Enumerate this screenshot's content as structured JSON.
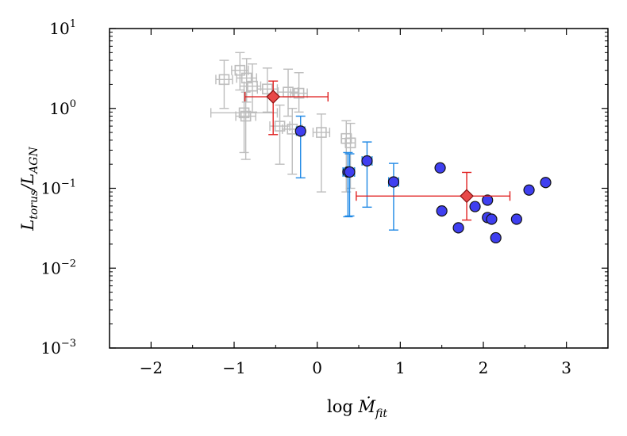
{
  "chart_data": {
    "type": "scatter",
    "title": "",
    "xlabel": {
      "prefix": "log ",
      "symbol": "Ṁ",
      "subscript": "fit"
    },
    "ylabel": {
      "symbol_num": "L",
      "sub_num": "torus",
      "slash": "/",
      "symbol_den": "L",
      "sub_den": "AGN"
    },
    "xlim": [
      -2.5,
      3.5
    ],
    "ylim_log10": [
      -3,
      1
    ],
    "yscale": "log",
    "x_ticks": [
      {
        "value": -2,
        "label": "−2"
      },
      {
        "value": -1,
        "label": "−1"
      },
      {
        "value": 0,
        "label": "0"
      },
      {
        "value": 1,
        "label": "1"
      },
      {
        "value": 2,
        "label": "2"
      },
      {
        "value": 3,
        "label": "3"
      }
    ],
    "y_ticks": [
      {
        "exp": 1,
        "base": "10",
        "sup": "1"
      },
      {
        "exp": 0,
        "base": "10",
        "sup": "0"
      },
      {
        "exp": -1,
        "base": "10",
        "sup": "−1"
      },
      {
        "exp": -2,
        "base": "10",
        "sup": "−2"
      },
      {
        "exp": -3,
        "base": "10",
        "sup": "−3"
      }
    ],
    "grid": false,
    "series": [
      {
        "name": "gray open squares",
        "color": "#bdbdbd",
        "marker": "square-open",
        "points": [
          {
            "x": -1.12,
            "y": 2.3,
            "ylo": 1.0,
            "yhi": 4.0,
            "xerr": 0.1
          },
          {
            "x": -0.93,
            "y": 3.0,
            "ylo": 1.7,
            "yhi": 5.0,
            "xerr": 0.1
          },
          {
            "x": -0.85,
            "y": 2.4,
            "ylo": 1.2,
            "yhi": 4.2,
            "xerr": 0.12
          },
          {
            "x": -0.78,
            "y": 1.9,
            "ylo": 0.9,
            "yhi": 3.6,
            "xerr": 0.1
          },
          {
            "x": -0.6,
            "y": 1.75,
            "ylo": 0.9,
            "yhi": 3.2,
            "xerr": 0.12
          },
          {
            "x": -0.35,
            "y": 1.6,
            "ylo": 0.8,
            "yhi": 3.1,
            "xerr": 0.12
          },
          {
            "x": -0.22,
            "y": 1.55,
            "ylo": 0.9,
            "yhi": 2.8,
            "xerr": 0.1
          },
          {
            "x": -0.88,
            "y": 0.88,
            "ylo": 0.28,
            "yhi": 1.9,
            "xerr": 0.4
          },
          {
            "x": -0.86,
            "y": 0.8,
            "ylo": 0.23,
            "yhi": 1.6,
            "xerr": 0.12
          },
          {
            "x": -0.45,
            "y": 0.6,
            "ylo": 0.2,
            "yhi": 1.1,
            "xerr": 0.12
          },
          {
            "x": -0.3,
            "y": 0.55,
            "ylo": 0.15,
            "yhi": 1.0,
            "xerr": 0.12
          },
          {
            "x": 0.05,
            "y": 0.5,
            "ylo": 0.09,
            "yhi": 0.85,
            "xerr": 0.1
          },
          {
            "x": 0.35,
            "y": 0.42,
            "ylo": 0.09,
            "yhi": 0.7,
            "xerr": 0.06
          },
          {
            "x": 0.4,
            "y": 0.37,
            "ylo": 0.1,
            "yhi": 0.65,
            "xerr": 0.06
          }
        ]
      },
      {
        "name": "blue filled circles with error bars",
        "color": "#1e88e5",
        "fill": "#3f3ff0",
        "marker": "circle",
        "points": [
          {
            "x": -0.2,
            "y": 0.52,
            "ylo": 0.135,
            "yhi": 0.8,
            "xerr": 0.05
          },
          {
            "x": 0.37,
            "y": 0.16,
            "ylo": 0.044,
            "yhi": 0.28,
            "xerr": 0.06
          },
          {
            "x": 0.39,
            "y": 0.16,
            "ylo": 0.045,
            "yhi": 0.27,
            "xerr": 0.06
          },
          {
            "x": 0.6,
            "y": 0.22,
            "ylo": 0.058,
            "yhi": 0.38,
            "xerr": 0.06
          },
          {
            "x": 0.92,
            "y": 0.12,
            "ylo": 0.03,
            "yhi": 0.205,
            "xerr": 0.06
          }
        ]
      },
      {
        "name": "blue filled circles",
        "color": "#000000",
        "fill": "#3f3ff0",
        "marker": "circle",
        "points": [
          {
            "x": 1.48,
            "y": 0.18
          },
          {
            "x": 1.5,
            "y": 0.052
          },
          {
            "x": 1.7,
            "y": 0.032
          },
          {
            "x": 1.9,
            "y": 0.059
          },
          {
            "x": 2.05,
            "y": 0.071
          },
          {
            "x": 2.05,
            "y": 0.043
          },
          {
            "x": 2.1,
            "y": 0.041
          },
          {
            "x": 2.15,
            "y": 0.024
          },
          {
            "x": 2.4,
            "y": 0.041
          },
          {
            "x": 2.55,
            "y": 0.095
          },
          {
            "x": 2.75,
            "y": 0.118
          }
        ]
      },
      {
        "name": "red diamonds (mean)",
        "color": "#e02020",
        "fill": "#e84848",
        "marker": "diamond",
        "points": [
          {
            "x": -0.53,
            "y": 1.4,
            "ylo": 0.47,
            "yhi": 2.2,
            "xlo": -0.87,
            "xhi": 0.13
          },
          {
            "x": 1.8,
            "y": 0.08,
            "ylo": 0.04,
            "yhi": 0.158,
            "xlo": 0.47,
            "xhi": 2.32
          }
        ]
      }
    ]
  }
}
